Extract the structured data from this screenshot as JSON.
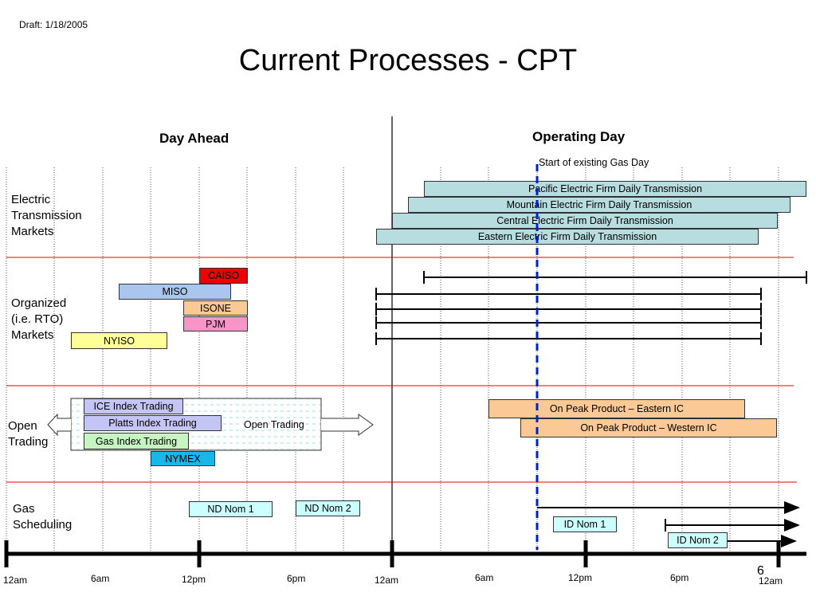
{
  "draft": "Draft: 1/18/2005",
  "title": "Current Processes - CPT",
  "headers": {
    "day_ahead": "Day Ahead",
    "operating_day": "Operating Day"
  },
  "gas_day_note": "Start of existing Gas Day",
  "rows": {
    "electric": "Electric\nTransmission\nMarkets",
    "organized": "Organized\n(i.e. RTO)\nMarkets",
    "open_trading": "Open\nTrading",
    "gas": "Gas\nScheduling"
  },
  "transmission": {
    "pacific": "Pacific Electric Firm Daily Transmission",
    "mountain": "Mountain Electric Firm Daily Transmission",
    "central": "Central Electric Firm Daily Transmission",
    "eastern": "Eastern Electric Firm Daily Transmission"
  },
  "rto": {
    "caiso": "CAISO",
    "miso": "MISO",
    "isone": "ISONE",
    "pjm": "PJM",
    "nyiso": "NYISO"
  },
  "trading": {
    "ice": "ICE Index Trading",
    "platts": "Platts Index Trading",
    "gas_index": "Gas Index Trading",
    "nymex": "NYMEX",
    "open": "Open Trading",
    "on_peak_east": "On Peak Product – Eastern IC",
    "on_peak_west": "On Peak Product – Western IC"
  },
  "gas": {
    "nd1": "ND Nom 1",
    "nd2": "ND Nom 2",
    "id1": "ID Nom 1",
    "id2": "ID Nom 2"
  },
  "ticks": [
    "12am",
    "6am",
    "12pm",
    "6pm",
    "12am",
    "6am",
    "12pm",
    "6pm",
    "12am"
  ],
  "page_number": "6",
  "colors": {
    "transmission": "#b7dde0",
    "caiso": "#ee0000",
    "miso": "#a9c7ee",
    "isone": "#fac995",
    "pjm": "#f894c8",
    "nyiso": "#ffff99",
    "ice": "#c5c5f5",
    "platts": "#c5c5f5",
    "gas_index": "#c7f5c2",
    "nymex": "#19b7e8",
    "on_peak": "#fac995",
    "nom": "#ccffff",
    "separator": "#ee0000",
    "gas_day_line": "#0022cc"
  }
}
